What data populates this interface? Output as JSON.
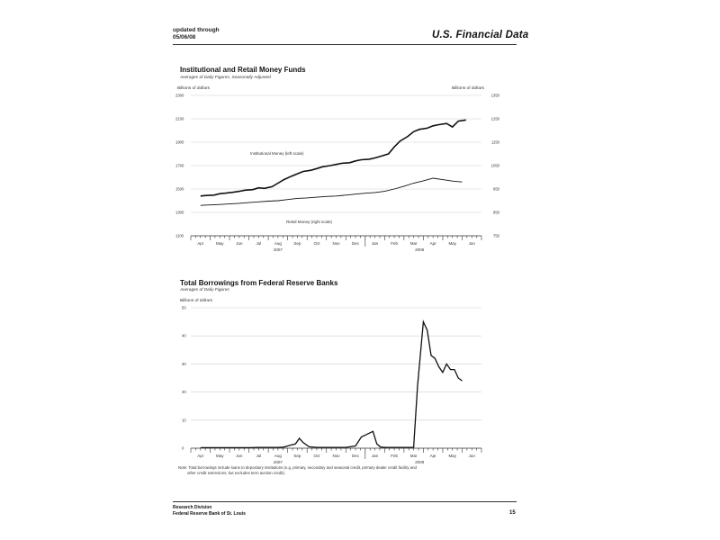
{
  "header": {
    "updated_line1": "updated through",
    "updated_line2": "05/06/08",
    "brand": "U.S. Financial Data"
  },
  "chart_data": [
    {
      "type": "line",
      "title": "Institutional and Retail Money Funds",
      "subtitle": "Averages of Daily Figures; Seasonally Adjusted",
      "ylabel_left": "Billions of dollars",
      "ylabel_right": "Billions of dollars",
      "ylim_left": [
        1100,
        2300
      ],
      "ylim_right": [
        750,
        1350
      ],
      "yticks_left": [
        "1100",
        "1300",
        "1500",
        "1700",
        "1900",
        "2100",
        "2300"
      ],
      "yticks_right": [
        "750",
        "850",
        "950",
        "1050",
        "1150",
        "1250",
        "1350"
      ],
      "x_months": [
        "Apr",
        "May",
        "Jun",
        "Jul",
        "Aug",
        "Sep",
        "Oct",
        "Nov",
        "Dec",
        "Jan",
        "Feb",
        "Mar",
        "Apr",
        "May",
        "Jun"
      ],
      "x_years": [
        "2007",
        "2008"
      ],
      "annotations": [
        "Institutional Money (left scale)",
        "Retail Money (right scale)"
      ],
      "series": [
        {
          "name": "Institutional Money (left scale)",
          "axis": "left",
          "x": [
            0,
            0.3,
            0.7,
            1,
            1.3,
            1.7,
            2,
            2.3,
            2.7,
            3,
            3.3,
            3.7,
            4,
            4.3,
            4.7,
            5,
            5.3,
            5.7,
            6,
            6.3,
            6.7,
            7,
            7.3,
            7.7,
            8,
            8.3,
            8.7,
            9,
            9.3,
            9.7,
            10,
            10.3,
            10.7,
            11,
            11.3,
            11.7,
            12,
            12.3,
            12.7,
            13,
            13.3,
            13.7
          ],
          "values": [
            1440,
            1445,
            1448,
            1460,
            1465,
            1472,
            1480,
            1490,
            1495,
            1510,
            1505,
            1520,
            1550,
            1580,
            1610,
            1630,
            1650,
            1660,
            1675,
            1690,
            1700,
            1710,
            1720,
            1725,
            1740,
            1750,
            1755,
            1765,
            1780,
            1800,
            1860,
            1910,
            1950,
            1990,
            2010,
            2020,
            2040,
            2050,
            2060,
            2030,
            2080,
            2090
          ]
        },
        {
          "name": "Retail Money (right scale)",
          "axis": "right",
          "x": [
            0,
            0.5,
            1,
            1.5,
            2,
            2.5,
            3,
            3.5,
            4,
            4.5,
            5,
            5.5,
            6,
            6.5,
            7,
            7.5,
            8,
            8.5,
            9,
            9.5,
            10,
            10.5,
            11,
            11.5,
            12,
            12.5,
            13,
            13.5
          ],
          "values": [
            880,
            882,
            884,
            886,
            889,
            892,
            895,
            898,
            900,
            905,
            910,
            912,
            915,
            918,
            920,
            924,
            928,
            932,
            935,
            940,
            950,
            962,
            975,
            985,
            996,
            990,
            984,
            980
          ]
        }
      ]
    },
    {
      "type": "line",
      "title": "Total Borrowings from Federal Reserve Banks",
      "subtitle": "Averages of Daily Figures",
      "ylabel": "Billions of dollars",
      "ylim": [
        0,
        50
      ],
      "yticks": [
        "0",
        "10",
        "20",
        "30",
        "40",
        "50"
      ],
      "x_months": [
        "Apr",
        "May",
        "Jun",
        "Jul",
        "Aug",
        "Sep",
        "Oct",
        "Nov",
        "Dec",
        "Jan",
        "Feb",
        "Mar",
        "Apr",
        "May",
        "Jun"
      ],
      "x_years": [
        "2007",
        "2008"
      ],
      "note": "Note: Total borrowings include loans to depository institutions (e.g. primary, secondary and seasonal credit, primary dealer credit facility and other credit extensions, but excludes term auction credit).",
      "series": [
        {
          "name": "Total Borrowings",
          "x": [
            0,
            0.5,
            1,
            1.5,
            2,
            2.5,
            3,
            3.5,
            4,
            4.3,
            4.6,
            4.9,
            5.1,
            5.3,
            5.6,
            6,
            6.5,
            7,
            7.5,
            8,
            8.3,
            8.6,
            8.9,
            9.1,
            9.3,
            9.6,
            10,
            10.5,
            11,
            11.2,
            11.5,
            11.7,
            11.9,
            12.1,
            12.3,
            12.5,
            12.7,
            12.9,
            13.1,
            13.3,
            13.5
          ],
          "values": [
            0.2,
            0.2,
            0.2,
            0.2,
            0.2,
            0.2,
            0.3,
            0.3,
            0.3,
            0.4,
            1,
            1.5,
            3.5,
            2,
            0.5,
            0.3,
            0.3,
            0.3,
            0.3,
            0.8,
            4,
            5,
            6,
            1.5,
            0.4,
            0.3,
            0.3,
            0.3,
            0.3,
            22,
            45,
            42,
            33,
            32,
            29,
            27,
            30,
            28,
            28,
            25,
            24
          ]
        }
      ]
    }
  ],
  "footer": {
    "line1": "Research Division",
    "line2": "Federal Reserve Bank of St. Louis",
    "page_number": "15"
  }
}
